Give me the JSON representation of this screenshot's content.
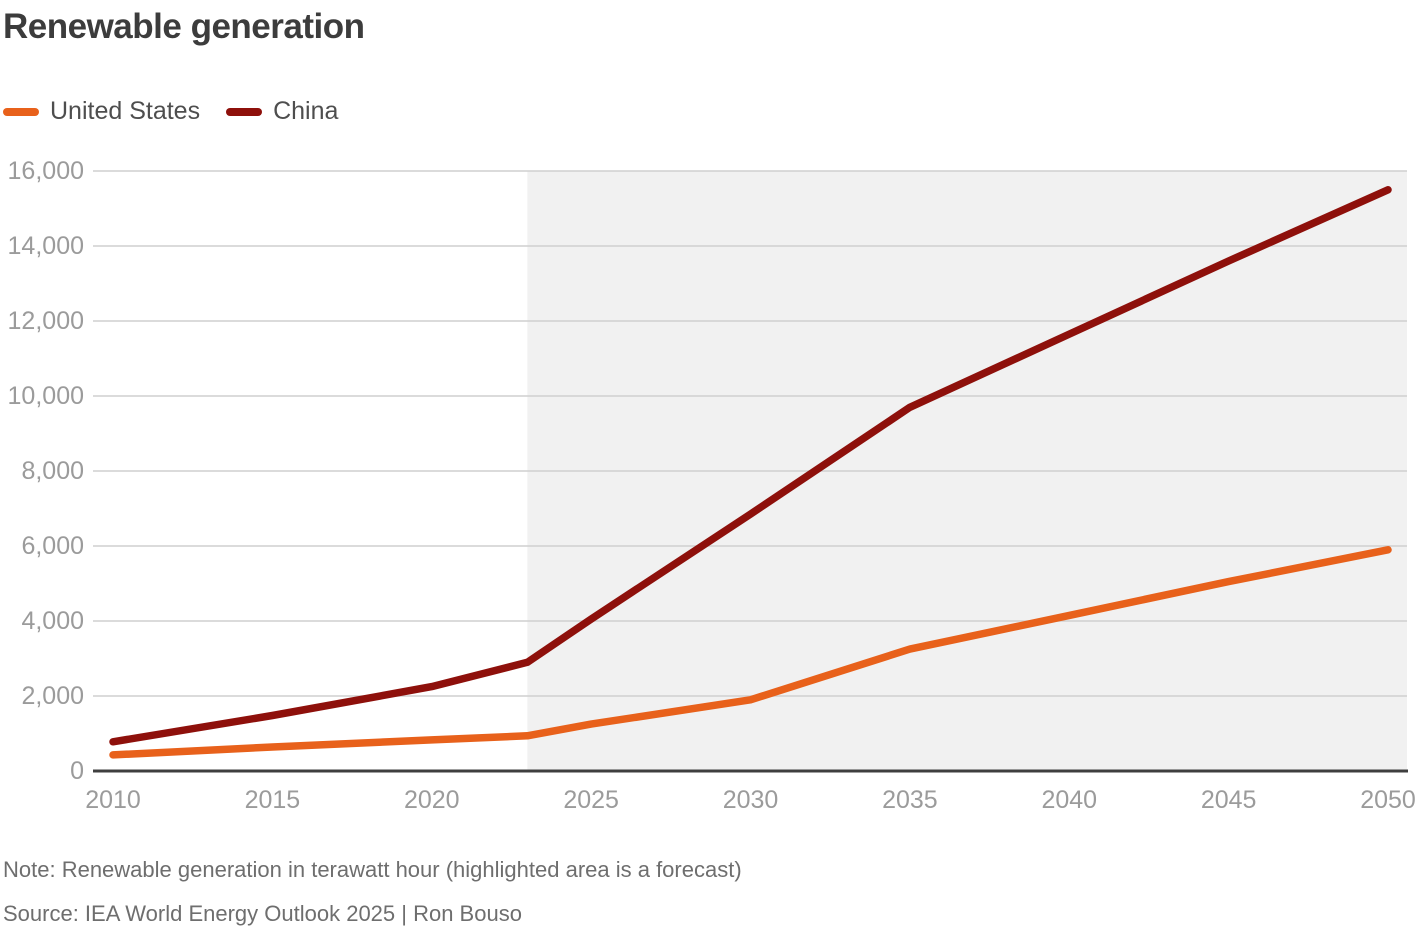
{
  "title": "Renewable generation",
  "note": "Note: Renewable generation in terawatt hour (highlighted area is a forecast)",
  "source": "Source: IEA World Energy Outlook 2025 | Ron Bouso",
  "colors": {
    "us_orange": "#E8611B",
    "china_red": "#8E100B",
    "forecast_bg": "#F1F1F1",
    "gridline": "#CFCFCF",
    "axis_line": "#3F3F3F",
    "tick_label": "#9B9B9B",
    "title_text": "#3C3C3C",
    "legend_text": "#4E4E4E",
    "note_text": "#6E6E6E"
  },
  "chart_data": {
    "type": "line",
    "title": "Renewable generation",
    "xlabel": "",
    "ylabel": "",
    "unit": "terawatt hour",
    "xlim": [
      2009.4,
      2050.6
    ],
    "ylim": [
      0,
      16000
    ],
    "xticks": [
      2010,
      2015,
      2020,
      2025,
      2030,
      2035,
      2040,
      2045,
      2050
    ],
    "yticks": [
      0,
      2000,
      4000,
      6000,
      8000,
      10000,
      12000,
      14000,
      16000
    ],
    "grid": "horizontal",
    "legend_position": "top-left",
    "forecast_start_year": 2023,
    "series": [
      {
        "name": "United States",
        "color": "#E8611B",
        "points": [
          [
            2010,
            430
          ],
          [
            2015,
            640
          ],
          [
            2020,
            830
          ],
          [
            2023,
            940
          ],
          [
            2025,
            1250
          ],
          [
            2030,
            1900
          ],
          [
            2035,
            3250
          ],
          [
            2040,
            4150
          ],
          [
            2045,
            5050
          ],
          [
            2050,
            5900
          ]
        ]
      },
      {
        "name": "China",
        "color": "#8E100B",
        "points": [
          [
            2010,
            780
          ],
          [
            2015,
            1480
          ],
          [
            2020,
            2250
          ],
          [
            2023,
            2900
          ],
          [
            2025,
            4050
          ],
          [
            2030,
            6850
          ],
          [
            2035,
            9700
          ],
          [
            2040,
            11650
          ],
          [
            2045,
            13600
          ],
          [
            2050,
            15500
          ]
        ]
      }
    ]
  }
}
